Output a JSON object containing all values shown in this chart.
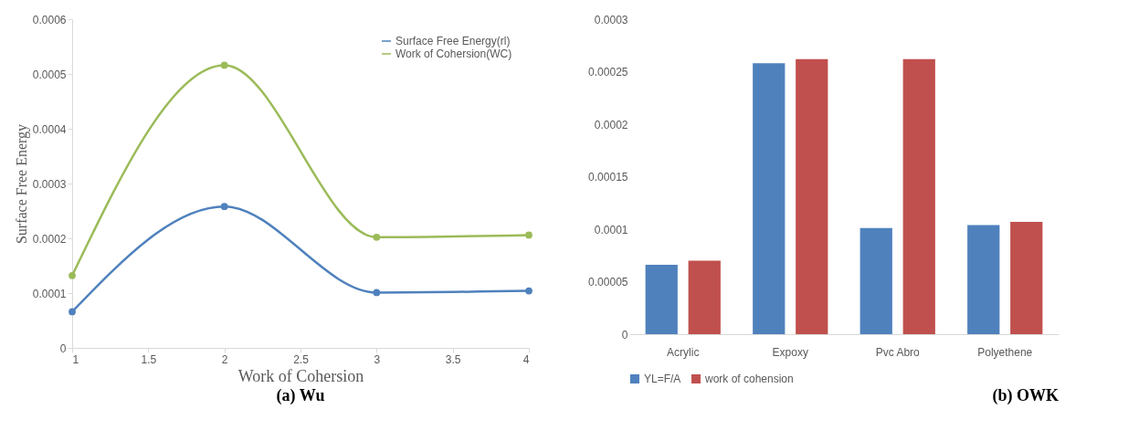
{
  "chart_data": [
    {
      "type": "line",
      "xlabel": "Work of Cohersion",
      "ylabel": "Surface Free Energy",
      "x": [
        1,
        2,
        3,
        4
      ],
      "series": [
        {
          "name": "Surface Free Energy(rl)",
          "color": "#4f81bd",
          "values": [
            6.6e-05,
            0.000258,
            0.000101,
            0.000104
          ]
        },
        {
          "name": "Work of Cohersion(WC)",
          "color": "#9bbb59",
          "values": [
            0.000132,
            0.000516,
            0.000202,
            0.000206
          ]
        }
      ],
      "xlim": [
        1,
        4
      ],
      "xticks": [
        1,
        1.5,
        2,
        2.5,
        3,
        3.5,
        4
      ],
      "ylim": [
        0,
        0.0006
      ],
      "yticks": [
        0,
        0.0001,
        0.0002,
        0.0003,
        0.0004,
        0.0005,
        0.0006
      ],
      "marker": "circle",
      "line_style": "solid",
      "legend": "top right",
      "grid": false,
      "annotations": [
        "(a) Wu"
      ]
    },
    {
      "type": "bar",
      "categories": [
        "Acrylic",
        "Expoxy",
        "Pvc Abro",
        "Polyethene"
      ],
      "series": [
        {
          "name": "YL=F/A",
          "color": "#4f81bd",
          "values": [
            6.6e-05,
            0.000258,
            0.000101,
            0.000104
          ]
        },
        {
          "name": "work of cohension",
          "color": "#c0504d",
          "values": [
            7e-05,
            0.000262,
            0.000262,
            0.000107
          ]
        }
      ],
      "ylim": [
        0,
        0.0003
      ],
      "yticks": [
        0,
        {
          "value": 5e-05,
          "label": "0.00005"
        },
        0.0001,
        0.00015,
        0.0002,
        0.00025,
        0.0003
      ],
      "legend": "bottom",
      "grid": false,
      "annotations": [
        "(b) OWK"
      ]
    }
  ]
}
